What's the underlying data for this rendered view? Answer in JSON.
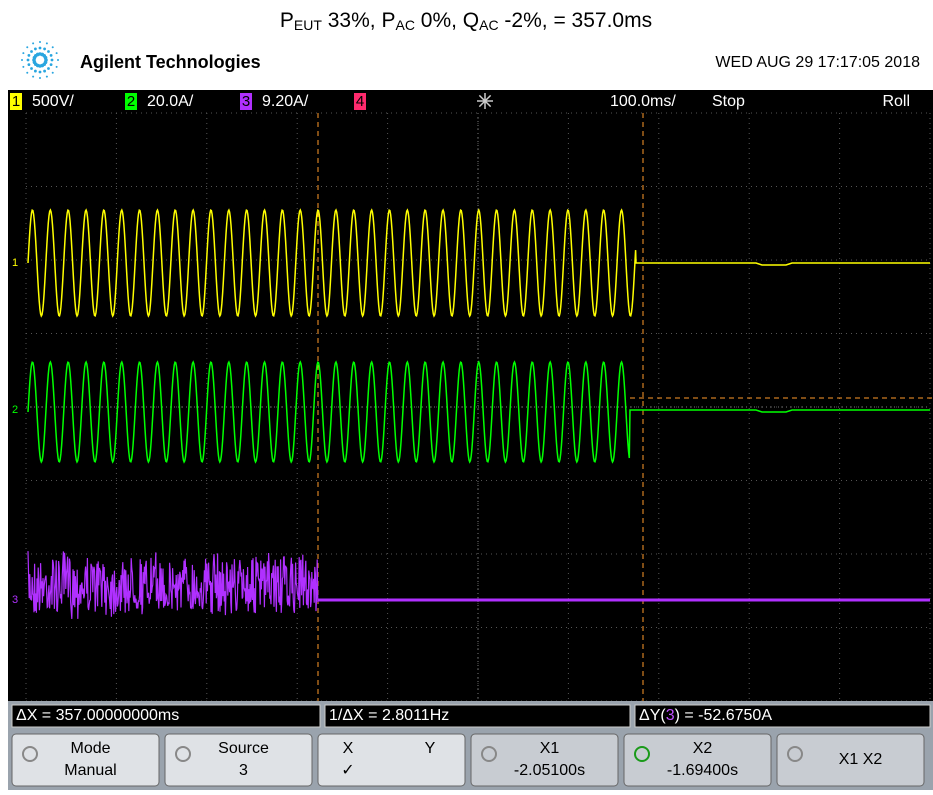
{
  "title": {
    "parts": [
      "P",
      "EUT",
      " 33%, ",
      "P",
      "AC",
      " 0%, ",
      "Q",
      "AC",
      " -2%, = 357.0ms"
    ]
  },
  "header": {
    "brand": "Agilent Technologies",
    "datetime": "WED AUG 29 17:17:05 2018"
  },
  "channels": [
    {
      "number": "1",
      "scale": "500V/"
    },
    {
      "number": "2",
      "scale": "20.0A/"
    },
    {
      "number": "3",
      "scale": "9.20A/"
    },
    {
      "number": "4"
    }
  ],
  "timebase": {
    "scale": "100.0ms/",
    "state": "Stop",
    "mode": "Roll"
  },
  "markers": [
    "1",
    "2",
    "3"
  ],
  "measurements": {
    "delta_x": "ΔX = 357.00000000ms",
    "inv_delta_x": "1/ΔX = 2.8011Hz",
    "delta_y": [
      "ΔY(",
      "3",
      ") = -52.6750A"
    ]
  },
  "softkeys": [
    {
      "top": "Mode",
      "bottom": "Manual"
    },
    {
      "top": "Source",
      "bottom": "3"
    },
    {
      "top": "X",
      "top2": "Y",
      "bottom": "✓"
    },
    {
      "top": "X1",
      "bottom": "-2.05100s"
    },
    {
      "top": "X2",
      "bottom": "-1.69400s"
    },
    {
      "top": "X1 X2"
    }
  ]
}
